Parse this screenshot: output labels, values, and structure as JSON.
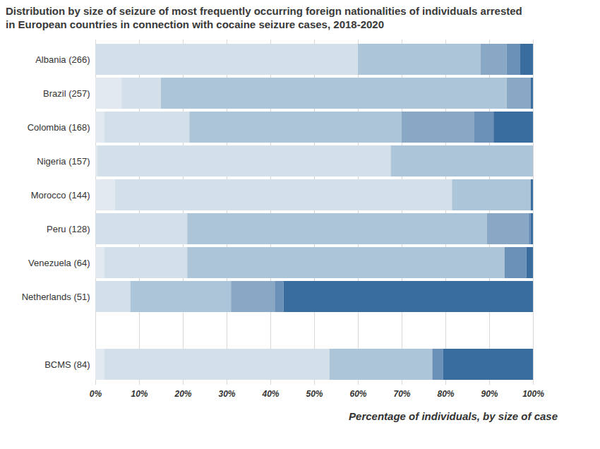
{
  "chart_data": {
    "type": "bar",
    "orientation": "horizontal",
    "stacked": true,
    "title": "Distribution by size of seizure of most frequently occurring foreign nationalities of individuals arrested in European countries in connection with cocaine seizure cases, 2018-2020",
    "x_label": "Percentage of individuals, by size of case",
    "categories": [
      "Albania (266)",
      "Brazil (257)",
      "Colombia (168)",
      "Nigeria (157)",
      "Morocco (144)",
      "Peru (128)",
      "Venezuela (64)",
      "Netherlands (51)",
      null,
      "BCMS (84)"
    ],
    "series": [
      {
        "color": "#e2e9f1",
        "values": [
          0,
          6,
          2,
          0.5,
          4.5,
          0,
          2,
          0,
          null,
          2
        ]
      },
      {
        "color": "#d3dfe9",
        "values": [
          60,
          9,
          19.5,
          67,
          77,
          21,
          19,
          8,
          null,
          51.5
        ]
      },
      {
        "color": "#adc5d8",
        "values": [
          28,
          79,
          48.5,
          32.5,
          18,
          68.5,
          72.5,
          23,
          null,
          23.5
        ]
      },
      {
        "color": "#88a8c5",
        "values": [
          6,
          5.5,
          16.5,
          0,
          0,
          9.5,
          0,
          10,
          null,
          0
        ]
      },
      {
        "color": "#6b91b8",
        "values": [
          3,
          0,
          4.5,
          0,
          0,
          0.5,
          5,
          2,
          null,
          2.5
        ]
      },
      {
        "color": "#3a6d9f",
        "values": [
          3,
          0.5,
          9,
          0,
          0.5,
          0.5,
          1.5,
          57,
          null,
          20.5
        ]
      }
    ],
    "xlim": [
      0,
      100
    ],
    "xticks": [
      {
        "value": 0,
        "label": "0%"
      },
      {
        "value": 10,
        "label": "10%"
      },
      {
        "value": 20,
        "label": "20%"
      },
      {
        "value": 30,
        "label": "30%"
      },
      {
        "value": 40,
        "label": "40%"
      },
      {
        "value": 50,
        "label": "50%"
      },
      {
        "value": 60,
        "label": "60%"
      },
      {
        "value": 70,
        "label": "70%"
      },
      {
        "value": 80,
        "label": "80%"
      },
      {
        "value": 90,
        "label": "90%"
      },
      {
        "value": 100,
        "label": "100%"
      }
    ],
    "grid": true
  }
}
